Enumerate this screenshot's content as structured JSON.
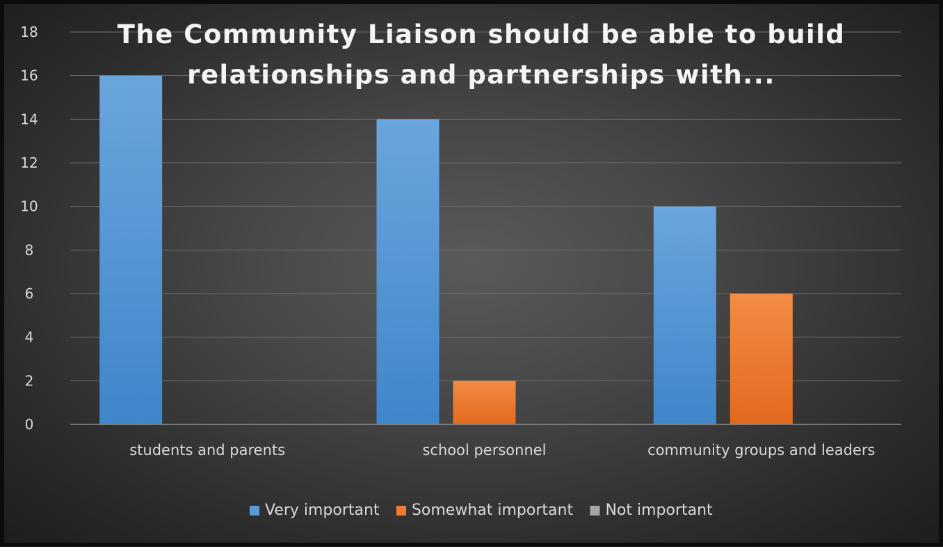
{
  "chart_data": {
    "type": "bar",
    "title_lines": [
      "The Community Liaison should be able to build",
      "relationships and partnerships with..."
    ],
    "categories": [
      "students and parents",
      "school personnel",
      "community groups and leaders"
    ],
    "series": [
      {
        "name": "Very important",
        "values": [
          16,
          14,
          10
        ],
        "color": "#5b9bd5"
      },
      {
        "name": "Somewhat important",
        "values": [
          0,
          2,
          6
        ],
        "color": "#ed7d31"
      },
      {
        "name": "Not important",
        "values": [
          0,
          0,
          0
        ],
        "color": "#a5a5a5"
      }
    ],
    "yticks": [
      "0",
      "2",
      "4",
      "6",
      "8",
      "10",
      "12",
      "14",
      "16",
      "18"
    ],
    "ylim": [
      0,
      18
    ],
    "grid": true,
    "legend_position": "bottom"
  }
}
